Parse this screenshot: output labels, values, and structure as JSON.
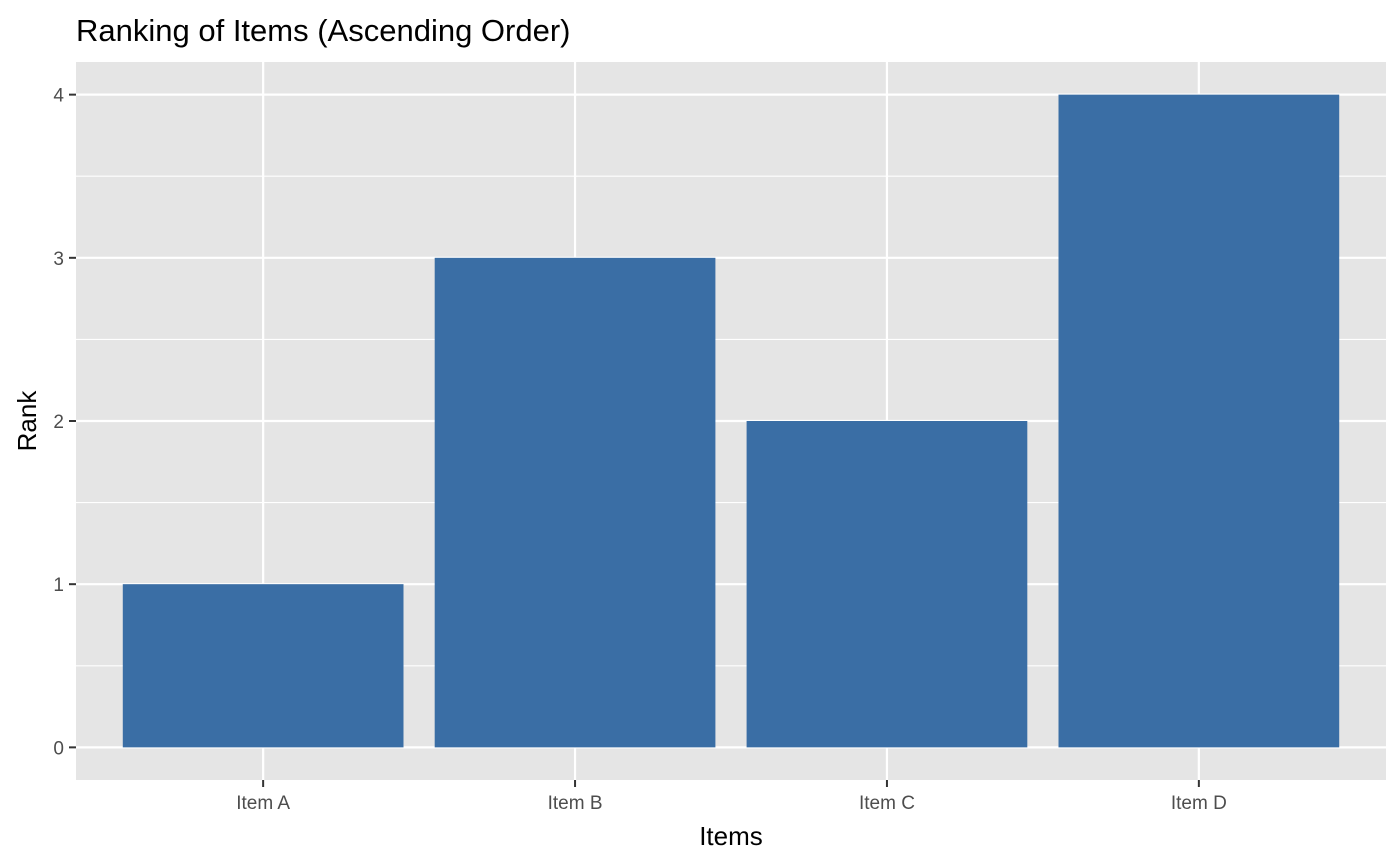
{
  "chart_data": {
    "type": "bar",
    "title": "Ranking of Items (Ascending Order)",
    "xlabel": "Items",
    "ylabel": "Rank",
    "categories": [
      "Item A",
      "Item B",
      "Item C",
      "Item D"
    ],
    "values": [
      1,
      3,
      2,
      4
    ],
    "ylim": [
      -0.2,
      4.2
    ],
    "yticks": [
      0,
      1,
      2,
      3,
      4
    ],
    "grid": true,
    "colors": {
      "bar": "#3a6ea5",
      "panel_background": "#e5e5e5",
      "grid_line": "#ffffff",
      "tick_label": "#4d4d4d",
      "tick_mark": "#333333"
    }
  }
}
